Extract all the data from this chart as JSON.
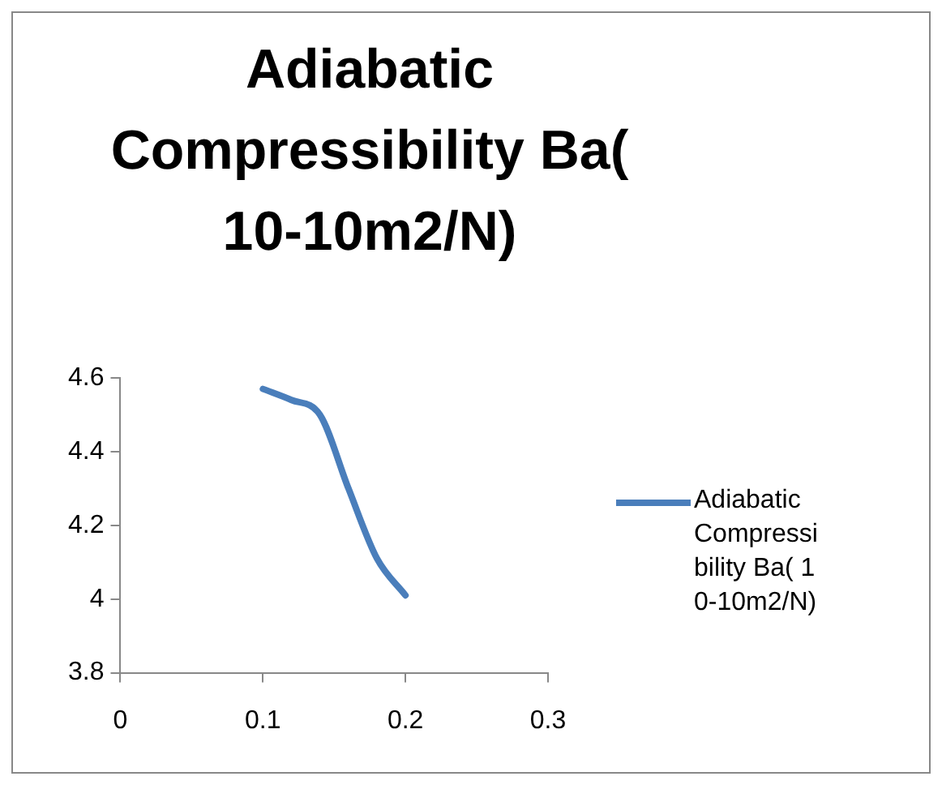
{
  "chart_data": {
    "type": "line",
    "title": "Adiabatic Compressibility Ba( 10-10m2/N)",
    "x": [
      0.1,
      0.12,
      0.14,
      0.16,
      0.18,
      0.2
    ],
    "series": [
      {
        "name": "Adiabatic Compressibility Ba( 10-10m2/N)",
        "color": "#4a7ebb",
        "values": [
          4.57,
          4.54,
          4.5,
          4.3,
          4.11,
          4.01
        ]
      }
    ],
    "xlim": [
      0,
      0.3
    ],
    "xticks": [
      0,
      0.1,
      0.2,
      0.3
    ],
    "ylim": [
      3.8,
      4.6
    ],
    "yticks": [
      3.8,
      4,
      4.2,
      4.4,
      4.6
    ],
    "grid": false,
    "legend": "right",
    "marker": "none",
    "line_style": "solid"
  }
}
